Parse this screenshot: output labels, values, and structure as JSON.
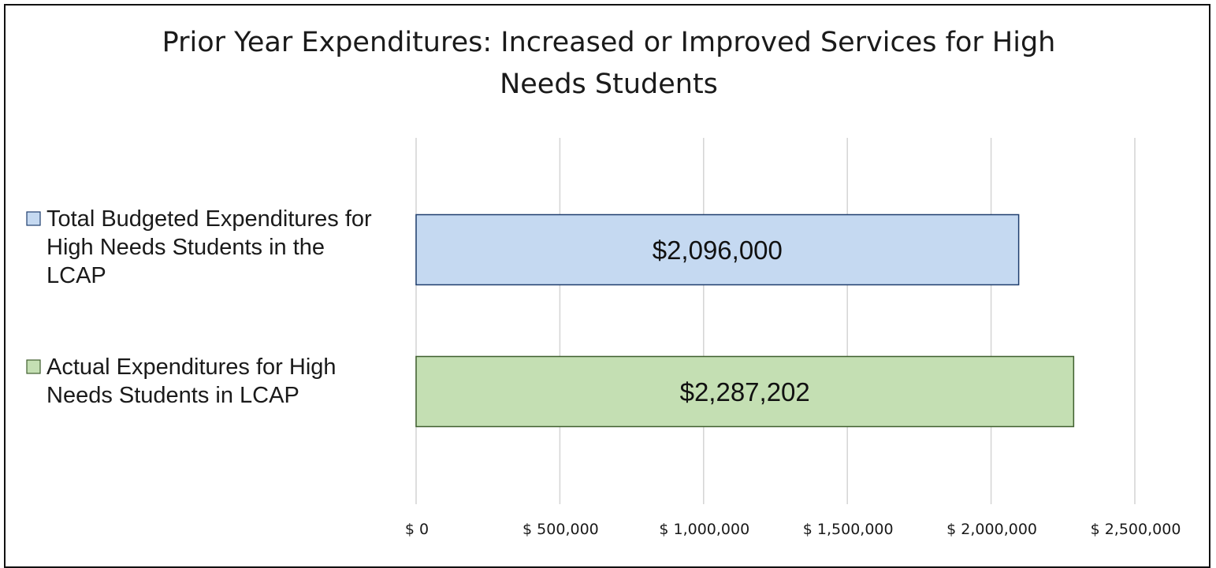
{
  "chart_data": {
    "type": "bar",
    "orientation": "horizontal",
    "title": "Prior Year Expenditures: Increased or Improved Services for High Needs Students",
    "xlabel": "",
    "ylabel": "",
    "xlim": [
      0,
      2500000
    ],
    "grid": true,
    "legend": "none",
    "x_ticks": [
      0,
      500000,
      1000000,
      1500000,
      2000000,
      2500000
    ],
    "x_tick_labels": [
      "$ 0",
      "$ 500,000",
      "$ 1,000,000",
      "$ 1,500,000",
      "$ 2,000,000",
      "$ 2,500,000"
    ],
    "categories": [
      {
        "lines": [
          "Total Budgeted Expenditures for",
          "High Needs Students in the",
          "LCAP"
        ],
        "value": 2096000,
        "data_label": "$2,096,000",
        "fill": "#c5d9f1",
        "stroke": "#1f3e6e"
      },
      {
        "lines": [
          "Actual Expenditures for High",
          "Needs Students in LCAP"
        ],
        "value": 2287202,
        "data_label": "$2,287,202",
        "fill": "#c4dfb3",
        "stroke": "#3f5f2e"
      }
    ],
    "colors": {
      "grid": "#d4d4d4",
      "text": "#1a1a1a"
    }
  }
}
